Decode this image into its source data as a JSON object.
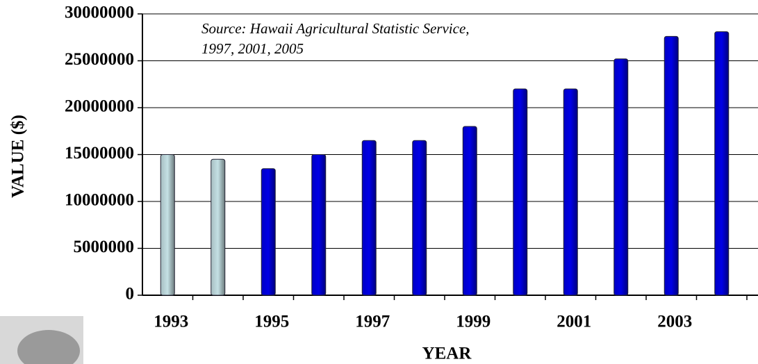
{
  "chart_data": {
    "type": "bar",
    "annotation": [
      "Source:  Hawaii Agricultural Statistic Service,",
      "1997, 2001, 2005"
    ],
    "x_label": "YEAR",
    "y_label": "VALUE ($)",
    "categories": [
      "1993",
      null,
      "1995",
      null,
      "1997",
      null,
      "1999",
      null,
      "2001",
      null,
      "2003",
      null
    ],
    "values": [
      15000000,
      14500000,
      13500000,
      15000000,
      16500000,
      16500000,
      18000000,
      22000000,
      22000000,
      25200000,
      27600000,
      28100000
    ],
    "colors": [
      "#c4e0e4",
      "#c4e0e4",
      "#0000e6",
      "#0000e6",
      "#0000e6",
      "#0000e6",
      "#0000e6",
      "#0000e6",
      "#0000e6",
      "#0000e6",
      "#0000e6",
      "#0000e6"
    ],
    "ylim": [
      0,
      30000000
    ],
    "yticks": [
      0,
      5000000,
      10000000,
      15000000,
      20000000,
      25000000,
      30000000
    ],
    "grid": true
  }
}
